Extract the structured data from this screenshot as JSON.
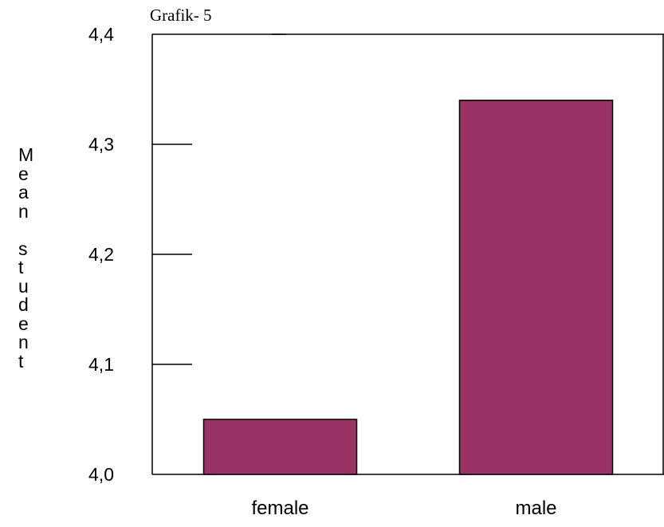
{
  "chart_data": {
    "type": "bar",
    "title": "Grafik- 5",
    "xlabel": "",
    "ylabel": "Mean student",
    "categories": [
      "female",
      "male"
    ],
    "values": [
      4.05,
      4.34
    ],
    "ylim": [
      4.0,
      4.4
    ],
    "yticks": [
      4.0,
      4.1,
      4.2,
      4.3,
      4.4
    ],
    "ytick_labels": [
      "4,0",
      "4,1",
      "4,2",
      "4,3",
      "4,4"
    ],
    "bar_color": "#993366",
    "grid": false,
    "legend": "none"
  }
}
